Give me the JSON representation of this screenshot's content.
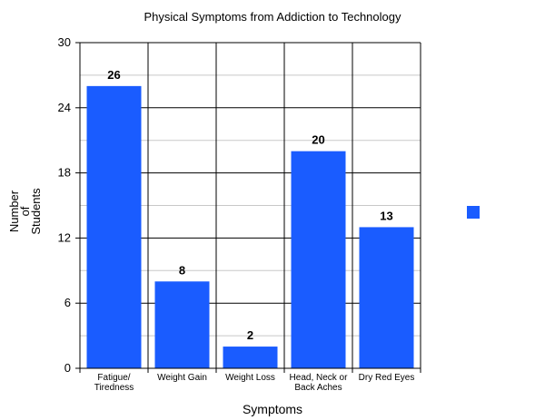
{
  "chart_data": {
    "type": "bar",
    "title": "Physical Symptoms from Addiction to Technology",
    "xlabel": "Symptoms",
    "ylabel": [
      "Number",
      "of",
      "Students"
    ],
    "categories": [
      [
        "Fatigue/",
        "Tiredness"
      ],
      [
        "Weight Gain"
      ],
      [
        "Weight Loss"
      ],
      [
        "Head, Neck or",
        "Back Aches"
      ],
      [
        "Dry Red Eyes"
      ]
    ],
    "values": [
      26,
      8,
      2,
      20,
      13
    ],
    "data_labels": [
      "26",
      "8",
      "2",
      "20",
      "13"
    ],
    "ylim": [
      0,
      30
    ],
    "yticks": [
      0,
      6,
      12,
      18,
      24,
      30
    ],
    "minor_gridlines": [
      3,
      9,
      15,
      21,
      27
    ],
    "grid": true,
    "bar_color": "#1a5cff",
    "legend": {
      "placement": "right",
      "color": "#1a5cff"
    }
  }
}
